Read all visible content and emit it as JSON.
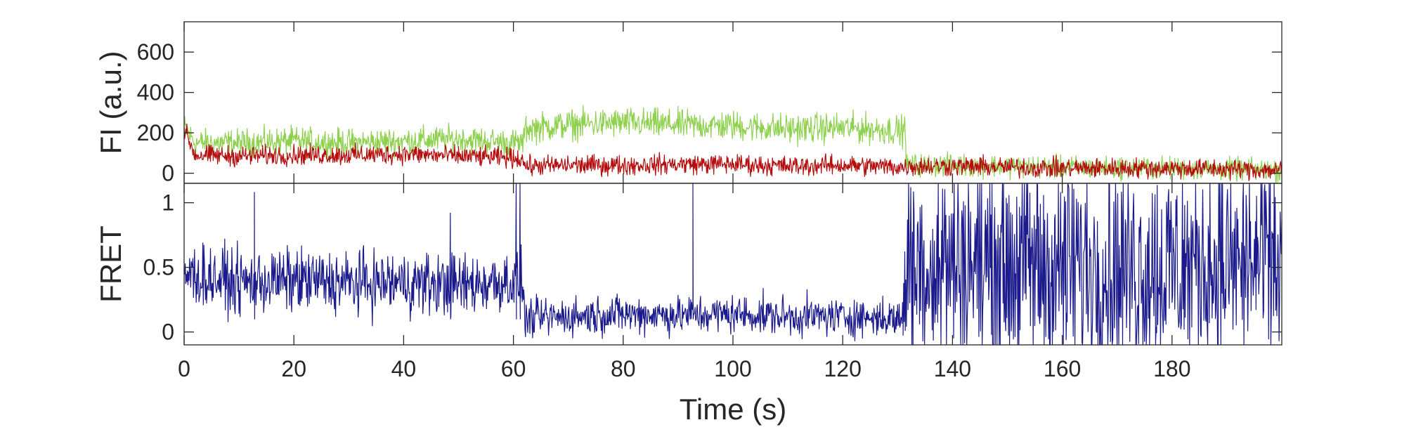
{
  "chart_data": [
    {
      "type": "line",
      "panel": "top",
      "ylabel": "FI (a.u.)",
      "xlabel": "",
      "xlim": [
        0,
        200
      ],
      "ylim": [
        -50,
        750
      ],
      "yticks": [
        0,
        200,
        400,
        600
      ],
      "yticklabels": [
        "0",
        "200",
        "400",
        "600"
      ],
      "grid": false,
      "series": [
        {
          "color": "#8fd14f",
          "segments": [
            {
              "x": [
                0,
                2,
                10,
                20,
                30,
                40,
                50,
                60,
                62
              ],
              "y": [
                230,
                150,
                150,
                160,
                150,
                160,
                170,
                150,
                150
              ],
              "noise": 55
            },
            {
              "x": [
                62,
                70,
                80,
                90,
                100,
                110,
                120,
                131.5
              ],
              "y": [
                220,
                240,
                250,
                240,
                235,
                220,
                225,
                210
              ],
              "noise": 60
            },
            {
              "x": [
                131.5,
                140,
                160,
                180,
                200
              ],
              "y": [
                40,
                40,
                30,
                25,
                15
              ],
              "noise": 45
            }
          ]
        },
        {
          "color": "#b50d0d",
          "segments": [
            {
              "x": [
                0,
                2,
                10,
                20,
                30,
                40,
                50,
                60,
                62
              ],
              "y": [
                220,
                90,
                85,
                90,
                90,
                95,
                85,
                75,
                70
              ],
              "noise": 40
            },
            {
              "x": [
                62,
                70,
                80,
                90,
                100,
                110,
                120,
                131.5
              ],
              "y": [
                35,
                40,
                40,
                45,
                45,
                35,
                40,
                30
              ],
              "noise": 40
            },
            {
              "x": [
                131.5,
                140,
                160,
                180,
                200
              ],
              "y": [
                35,
                35,
                25,
                25,
                15
              ],
              "noise": 40
            }
          ]
        }
      ]
    },
    {
      "type": "line",
      "panel": "bottom",
      "ylabel": "FRET",
      "xlabel": "Time (s)",
      "xlim": [
        0,
        200
      ],
      "ylim": [
        -0.1,
        1.15
      ],
      "xticks": [
        0,
        20,
        40,
        60,
        80,
        100,
        120,
        140,
        160,
        180
      ],
      "xticklabels": [
        "0",
        "20",
        "40",
        "60",
        "80",
        "100",
        "120",
        "140",
        "160",
        "180"
      ],
      "yticks": [
        0,
        0.5,
        1
      ],
      "yticklabels": [
        "0",
        "0.5",
        "1"
      ],
      "grid": false,
      "series": [
        {
          "color": "#1a1a8c",
          "segments": [
            {
              "x": [
                0,
                10,
                20,
                30,
                40,
                50,
                60,
                62
              ],
              "y": [
                0.45,
                0.38,
                0.4,
                0.38,
                0.38,
                0.36,
                0.4,
                0.35
              ],
              "noise": 0.2
            },
            {
              "x": [
                62,
                70,
                80,
                90,
                100,
                110,
                120,
                131
              ],
              "y": [
                0.1,
                0.12,
                0.14,
                0.13,
                0.14,
                0.12,
                0.12,
                0.1
              ],
              "noise": 0.12
            },
            {
              "x": [
                131,
                140,
                160,
                180,
                200
              ],
              "y": [
                0.5,
                0.55,
                0.5,
                0.5,
                0.55
              ],
              "noise": 0.7
            }
          ],
          "spikes": [
            [
              12.8,
              1.08
            ],
            [
              48.5,
              0.92
            ],
            [
              60.5,
              1.15
            ],
            [
              61.2,
              1.15
            ],
            [
              92.7,
              1.15
            ]
          ]
        }
      ]
    }
  ]
}
